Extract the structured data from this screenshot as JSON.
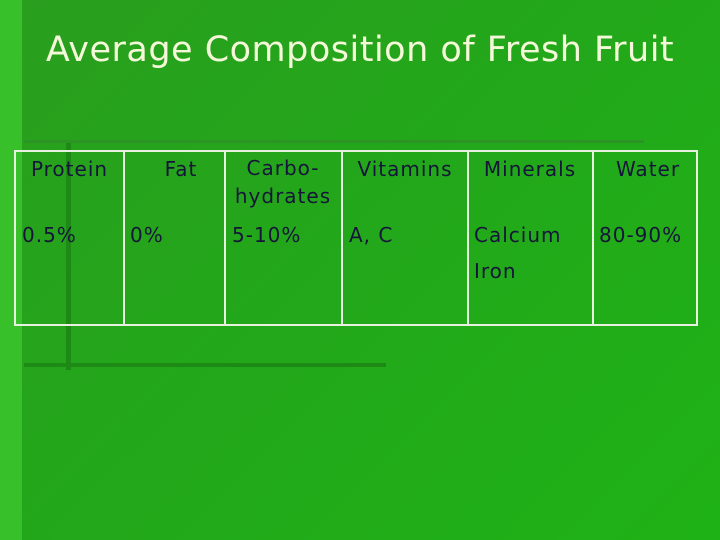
{
  "title": "Average Composition of Fresh Fruit",
  "table": {
    "headers": [
      "Protein",
      "Fat",
      "Carbo-hydrates",
      "Vitamins",
      "Minerals",
      "Water"
    ],
    "rows": [
      [
        "0.5%",
        "0%",
        "5-10%",
        "A, C",
        [
          "Calcium",
          "Iron"
        ],
        "80-90%"
      ]
    ]
  }
}
